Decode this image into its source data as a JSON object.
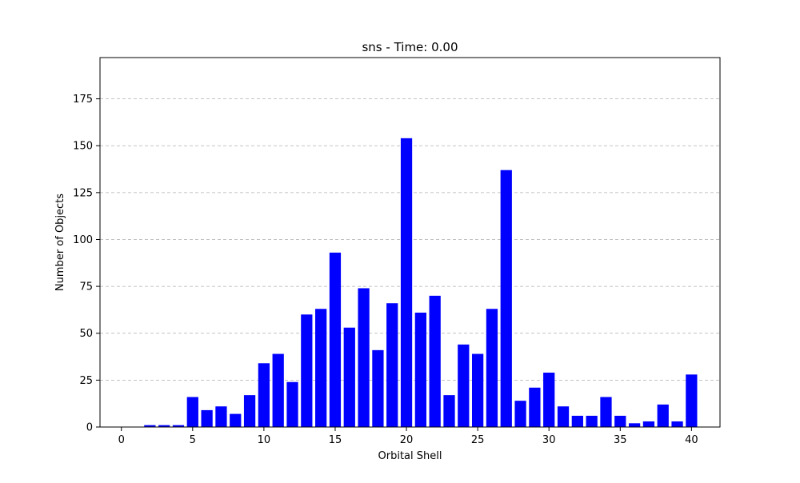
{
  "chart_data": {
    "type": "bar",
    "title": "sns - Time: 0.00",
    "xlabel": "Orbital Shell",
    "ylabel": "Number of Objects",
    "x": [
      0,
      1,
      2,
      3,
      4,
      5,
      6,
      7,
      8,
      9,
      10,
      11,
      12,
      13,
      14,
      15,
      16,
      17,
      18,
      19,
      20,
      21,
      22,
      23,
      24,
      25,
      26,
      27,
      28,
      29,
      30,
      31,
      32,
      33,
      34,
      35,
      36,
      37,
      38,
      39,
      40
    ],
    "values": [
      0,
      0,
      1,
      1,
      1,
      16,
      9,
      11,
      7,
      17,
      34,
      39,
      24,
      60,
      63,
      93,
      53,
      74,
      41,
      66,
      154,
      61,
      70,
      17,
      44,
      39,
      63,
      137,
      14,
      21,
      29,
      11,
      6,
      6,
      16,
      6,
      2,
      3,
      12,
      3,
      28
    ],
    "xlim": [
      -1.5,
      42.0
    ],
    "ylim": [
      0,
      197
    ],
    "xticks": [
      0,
      5,
      10,
      15,
      20,
      25,
      30,
      35,
      40
    ],
    "yticks": [
      0,
      25,
      50,
      75,
      100,
      125,
      150,
      175
    ],
    "grid": "y-dashed",
    "bar_color": "#0000ff"
  }
}
